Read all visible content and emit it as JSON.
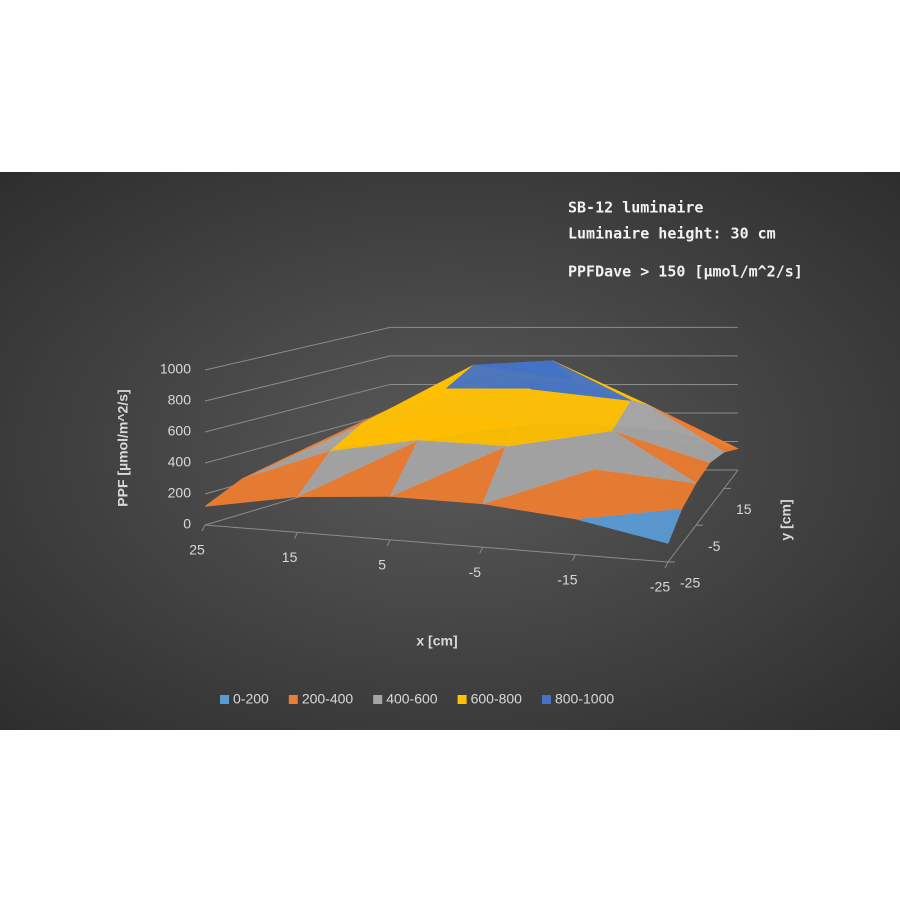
{
  "chart_data": {
    "type": "surface",
    "annotations": [
      "SB-12 luminaire",
      "Luminaire height: 30 cm",
      "PPFDave > 150 [µmol/m^2/s]"
    ],
    "x_label": "x [cm]",
    "y_label": "y [cm]",
    "z_label": "PPF [µmol/m^2/s]",
    "x": [
      25,
      15,
      5,
      -5,
      -15,
      -25
    ],
    "y": [
      -25,
      -15,
      -5,
      5,
      15,
      25
    ],
    "xlim": [
      25,
      -25
    ],
    "xticks": [
      25,
      15,
      5,
      -5,
      -15,
      -25
    ],
    "ylim": [
      -25,
      25
    ],
    "yticks": [
      -25,
      -5,
      15
    ],
    "zlim": [
      0,
      1000
    ],
    "zticks": [
      0,
      200,
      400,
      600,
      800,
      1000
    ],
    "z": [
      [
        120,
        230,
        280,
        280,
        230,
        120
      ],
      [
        230,
        450,
        560,
        560,
        450,
        230
      ],
      [
        280,
        560,
        820,
        850,
        600,
        280
      ],
      [
        290,
        600,
        900,
        950,
        700,
        300
      ],
      [
        250,
        480,
        700,
        720,
        560,
        250
      ],
      [
        150,
        260,
        320,
        320,
        280,
        150
      ]
    ],
    "bands": [
      {
        "name": "0-200",
        "color": "#5b9bd5"
      },
      {
        "name": "200-400",
        "color": "#ed7d31"
      },
      {
        "name": "400-600",
        "color": "#a5a5a5"
      },
      {
        "name": "600-800",
        "color": "#ffc000"
      },
      {
        "name": "800-1000",
        "color": "#4472c4"
      }
    ],
    "grid": true
  }
}
